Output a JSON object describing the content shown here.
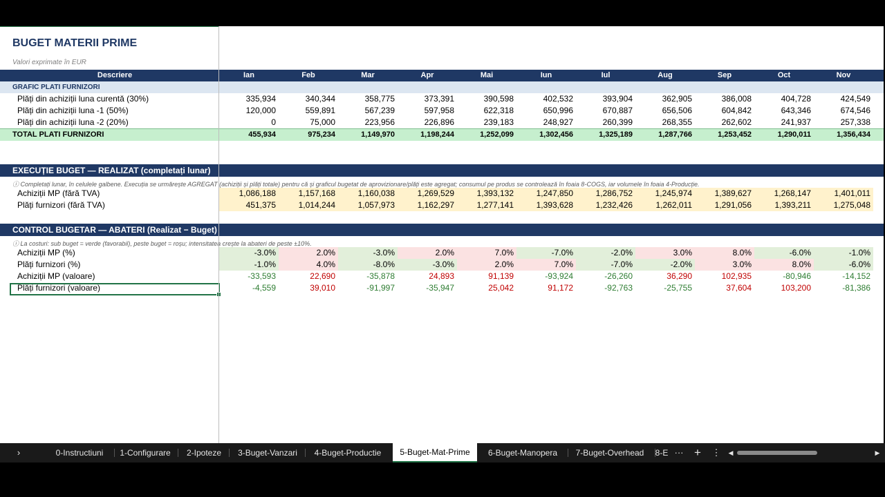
{
  "title": "BUGET MATERII PRIME",
  "subtitle": "Valori exprimate în EUR",
  "header": {
    "desc": "Descriere",
    "months": [
      "Ian",
      "Feb",
      "Mar",
      "Apr",
      "Mai",
      "Iun",
      "Iul",
      "Aug",
      "Sep",
      "Oct",
      "Nov"
    ]
  },
  "grafic": {
    "title": "GRAFIC PLATI FURNIZORI",
    "rows": [
      {
        "label": "Plăți din achiziții luna curentă (30%)",
        "values": [
          "335,934",
          "340,344",
          "358,775",
          "373,391",
          "390,598",
          "402,532",
          "393,904",
          "362,905",
          "386,008",
          "404,728",
          "424,549"
        ]
      },
      {
        "label": "Plăți din achiziții luna -1 (50%)",
        "values": [
          "120,000",
          "559,891",
          "567,239",
          "597,958",
          "622,318",
          "650,996",
          "670,887",
          "656,506",
          "604,842",
          "643,346",
          "674,546"
        ]
      },
      {
        "label": "Plăți din achiziții luna -2 (20%)",
        "values": [
          "0",
          "75,000",
          "223,956",
          "226,896",
          "239,183",
          "248,927",
          "260,399",
          "268,355",
          "262,602",
          "241,937",
          "257,338"
        ]
      }
    ],
    "total": {
      "label": "TOTAL PLATI FURNIZORI",
      "values": [
        "455,934",
        "975,234",
        "1,149,970",
        "1,198,244",
        "1,252,099",
        "1,302,456",
        "1,325,189",
        "1,287,766",
        "1,253,452",
        "1,290,011",
        "1,356,434"
      ]
    }
  },
  "executie": {
    "title": "EXECUȚIE BUGET — REALIZAT (completați lunar)",
    "note": "ⓘ Completați lunar, în celulele galbene. Execuția se urmărește AGREGAT (achiziții și plăți totale) pentru că și graficul bugetat de aprovizionare/plăți este agregat; consumul pe produs se controlează în foaia 8-COGS, iar volumele în foaia 4-Producție.",
    "rows": [
      {
        "label": "Achiziții MP (fără TVA)",
        "values": [
          "1,086,188",
          "1,157,168",
          "1,160,038",
          "1,269,529",
          "1,393,132",
          "1,247,850",
          "1,286,752",
          "1,245,974",
          "1,389,627",
          "1,268,147",
          "1,401,011"
        ]
      },
      {
        "label": "Plăți furnizori (fără TVA)",
        "values": [
          "451,375",
          "1,014,244",
          "1,057,973",
          "1,162,297",
          "1,277,141",
          "1,393,628",
          "1,232,426",
          "1,262,011",
          "1,291,056",
          "1,393,211",
          "1,275,048"
        ]
      }
    ]
  },
  "control": {
    "title": "CONTROL BUGETAR — ABATERI (Realizat − Buget)",
    "note": "ⓘ La costuri: sub buget = verde (favorabil), peste buget = roșu; intensitatea crește la abateri de peste ±10%.",
    "rows": [
      {
        "label": "Achiziții MP (%)",
        "values": [
          "-3.0%",
          "2.0%",
          "-3.0%",
          "2.0%",
          "7.0%",
          "-7.0%",
          "-2.0%",
          "3.0%",
          "8.0%",
          "-6.0%",
          "-1.0%"
        ],
        "shaded": true
      },
      {
        "label": "Plăți furnizori (%)",
        "values": [
          "-1.0%",
          "4.0%",
          "-8.0%",
          "-3.0%",
          "2.0%",
          "7.0%",
          "-7.0%",
          "-2.0%",
          "3.0%",
          "8.0%",
          "-6.0%"
        ],
        "shaded": true
      },
      {
        "label": "Achiziții MP (valoare)",
        "values": [
          "-33,593",
          "22,690",
          "-35,878",
          "24,893",
          "91,139",
          "-93,924",
          "-26,260",
          "36,290",
          "102,935",
          "-80,946",
          "-14,152"
        ],
        "shaded": false
      },
      {
        "label": "Plăți furnizori (valoare)",
        "values": [
          "-4,559",
          "39,010",
          "-91,997",
          "-35,947",
          "25,042",
          "91,172",
          "-92,763",
          "-25,755",
          "37,604",
          "103,200",
          "-81,386"
        ],
        "shaded": false
      }
    ]
  },
  "tabs": {
    "nav": "›",
    "items": [
      "0-Instructiuni",
      "1-Configurare",
      "2-Ipoteze",
      "3-Buget-Vanzari",
      "4-Buget-Productie",
      "5-Buget-Mat-Prime",
      "6-Buget-Manopera",
      "7-Buget-Overhead",
      "8-E"
    ],
    "active": 5,
    "more": "···",
    "add": "+",
    "options": "⋮",
    "scroll_left": "◀",
    "scroll_right": "▶"
  },
  "colors": {
    "header": "#1f3864",
    "total": "#c6efce",
    "input": "#fff2cc",
    "favorable": "#e2efda",
    "unfavorable": "#fbe2e2"
  }
}
